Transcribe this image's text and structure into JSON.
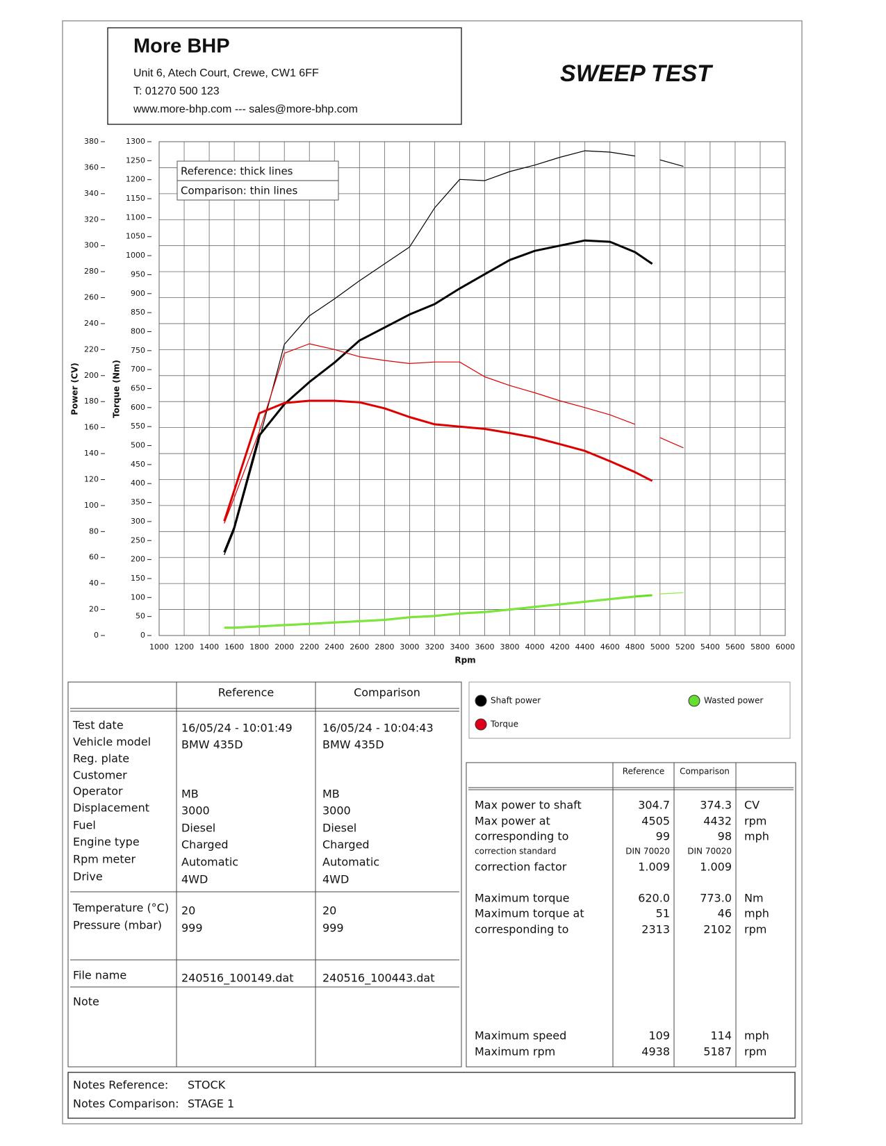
{
  "header": {
    "company": "More BHP",
    "address": "Unit 6, Atech Court, Crewe, CW1 6FF",
    "phone": "T: 01270 500 123",
    "web": "www.more-bhp.com --- sales@more-bhp.com",
    "title": "SWEEP TEST"
  },
  "chart_data": {
    "type": "line",
    "xlabel": "Rpm",
    "ylabel": "Power (CV)",
    "y2label": "Torque (Nm)",
    "annotations": [
      "Reference: thick lines",
      "Comparison: thin lines"
    ],
    "x": [
      1520,
      1600,
      1800,
      2000,
      2200,
      2400,
      2600,
      2800,
      3000,
      3200,
      3400,
      3600,
      3800,
      4000,
      4200,
      4400,
      4600,
      4800,
      4938,
      5000,
      5187
    ],
    "xlim": [
      1000,
      6000
    ],
    "xticks": [
      1000,
      1200,
      1400,
      1600,
      1800,
      2000,
      2200,
      2400,
      2600,
      2800,
      3000,
      3200,
      3400,
      3600,
      3800,
      4000,
      4200,
      4400,
      4600,
      4800,
      5000,
      5200,
      5400,
      5600,
      5800,
      6000
    ],
    "ylim": [
      0,
      380
    ],
    "yticks": [
      0,
      20,
      40,
      60,
      80,
      100,
      120,
      140,
      160,
      180,
      200,
      220,
      240,
      260,
      280,
      300,
      320,
      340,
      360,
      380
    ],
    "y2lim": [
      0,
      1300
    ],
    "y2ticks": [
      0,
      50,
      100,
      150,
      200,
      250,
      300,
      350,
      400,
      450,
      500,
      550,
      600,
      650,
      700,
      750,
      800,
      850,
      900,
      950,
      1000,
      1050,
      1100,
      1150,
      1200,
      1250,
      1300
    ],
    "grid": true,
    "series": [
      {
        "color": "#000000",
        "style": "thick",
        "values": [
          64,
          83,
          154,
          178,
          195,
          210,
          227,
          237,
          247,
          255,
          267,
          278,
          289,
          296,
          300,
          304,
          303,
          295,
          286,
          null,
          null
        ]
      },
      {
        "color": "#000000",
        "style": "thin",
        "values": [
          62,
          81,
          151,
          224,
          246,
          259,
          273,
          286,
          299,
          329,
          351,
          350,
          357,
          362,
          368,
          373,
          372,
          369,
          null,
          366,
          361
        ]
      },
      {
        "color": "#dd0000",
        "style": "thick",
        "axis": "y2",
        "values": [
          301,
          382,
          585,
          612,
          618,
          618,
          614,
          598,
          575,
          556,
          550,
          544,
          533,
          521,
          504,
          486,
          459,
          430,
          407,
          null,
          null
        ]
      },
      {
        "color": "#dd0000",
        "style": "thin",
        "axis": "y2",
        "values": [
          295,
          363,
          537,
          743,
          768,
          753,
          734,
          724,
          716,
          720,
          720,
          681,
          658,
          639,
          618,
          600,
          581,
          556,
          null,
          521,
          494
        ]
      },
      {
        "color": "#66dd22",
        "style": "thick",
        "values": [
          6,
          6,
          7,
          8,
          9,
          10,
          11,
          12,
          14,
          15,
          17,
          18,
          20,
          22,
          24,
          26,
          28,
          30,
          31,
          null,
          null
        ]
      },
      {
        "color": "#88ee44",
        "style": "thin",
        "values": [
          6,
          6,
          7,
          8,
          9,
          10,
          11,
          12,
          14,
          15,
          17,
          18,
          20,
          22,
          24,
          26,
          28,
          30,
          null,
          32,
          33
        ]
      }
    ]
  },
  "info_table": {
    "columns": [
      "Reference",
      "Comparison"
    ],
    "sections": [
      [
        [
          "Test date",
          "16/05/24 - 10:01:49",
          "16/05/24 - 10:04:43"
        ],
        [
          "Vehicle model",
          "BMW 435D",
          "BMW 435D"
        ],
        [
          "Reg. plate",
          null,
          null
        ],
        [
          "Customer",
          null,
          null
        ],
        [
          "Operator",
          "MB",
          "MB"
        ],
        [
          "Displacement",
          "3000",
          "3000"
        ],
        [
          "Fuel",
          "Diesel",
          "Diesel"
        ],
        [
          "Engine type",
          "Charged",
          "Charged"
        ],
        [
          "Rpm meter",
          "Automatic",
          "Automatic"
        ],
        [
          "Drive",
          "4WD",
          "4WD"
        ]
      ],
      [
        [
          "Temperature (°C)",
          "20",
          "20"
        ],
        [
          "Pressure (mbar)",
          "999",
          "999"
        ]
      ],
      [
        [
          "File name",
          "240516_100149.dat",
          "240516_100443.dat"
        ]
      ],
      [
        [
          "Note",
          null,
          null
        ]
      ]
    ]
  },
  "legend": [
    {
      "label": "Shaft power",
      "color": "#000000"
    },
    {
      "label": "Torque",
      "color": "#e0001b"
    },
    {
      "label": "Wasted power",
      "color": "#66dd33"
    }
  ],
  "results_table": {
    "columns": [
      "Reference",
      "Comparison"
    ],
    "sections": [
      [
        [
          "Max power to shaft",
          "304.7",
          "374.3",
          "CV"
        ],
        [
          "Max power at",
          "4505",
          "4432",
          "rpm"
        ],
        [
          "corresponding to",
          "99",
          "98",
          "mph"
        ],
        [
          "correction standard",
          "DIN 70020",
          "DIN 70020",
          null
        ],
        [
          "correction factor",
          "1.009",
          "1.009",
          null
        ]
      ],
      [
        [
          "Maximum torque",
          "620.0",
          "773.0",
          "Nm"
        ],
        [
          "Maximum torque at",
          "51",
          "46",
          "mph"
        ],
        [
          "corresponding to",
          "2313",
          "2102",
          "rpm"
        ]
      ],
      [
        [
          "Maximum speed",
          "109",
          "114",
          "mph"
        ],
        [
          "Maximum rpm",
          "4938",
          "5187",
          "rpm"
        ]
      ]
    ]
  },
  "notes": [
    [
      "Notes Reference:",
      "STOCK"
    ],
    [
      "Notes Comparison:",
      "STAGE 1"
    ]
  ]
}
